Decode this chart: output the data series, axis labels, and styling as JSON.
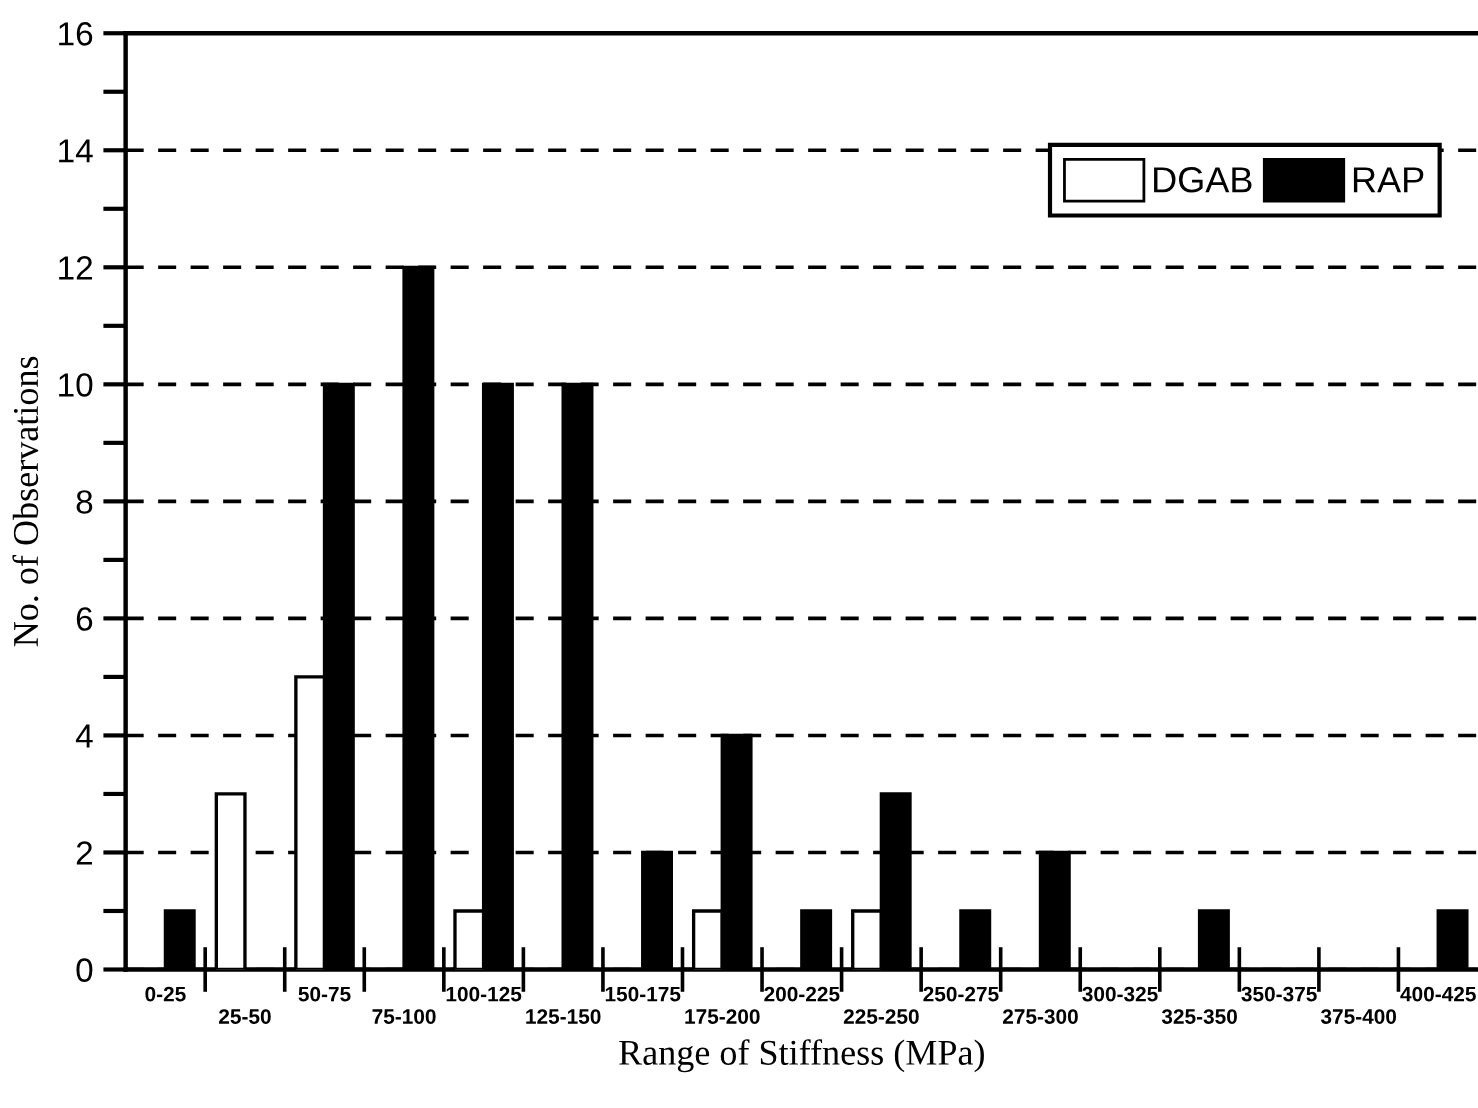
{
  "chart_data": {
    "type": "bar",
    "xlabel": "Range of Stiffness (MPa)",
    "ylabel": "No. of Observations",
    "categories": [
      "0-25",
      "25-50",
      "50-75",
      "75-100",
      "100-125",
      "125-150",
      "150-175",
      "175-200",
      "200-225",
      "225-250",
      "250-275",
      "275-300",
      "300-325",
      "325-350",
      "350-375",
      "375-400",
      "400-425"
    ],
    "series": [
      {
        "name": "DGAB",
        "color": "#ffffff",
        "values": [
          0,
          3,
          5,
          0,
          1,
          0,
          0,
          1,
          0,
          1,
          0,
          0,
          0,
          0,
          0,
          0,
          0
        ]
      },
      {
        "name": "RAP",
        "color": "#000000",
        "values": [
          1,
          0,
          10,
          12,
          10,
          10,
          2,
          4,
          1,
          3,
          1,
          2,
          0,
          1,
          0,
          0,
          1
        ]
      }
    ],
    "ylim": [
      0,
      16
    ],
    "yticks": [
      0,
      {
        "value": 1,
        "label": null
      },
      2,
      {
        "value": 3,
        "label": null
      },
      4,
      {
        "value": 5,
        "label": null
      },
      6,
      {
        "value": 7,
        "label": null
      },
      8,
      {
        "value": 9,
        "label": null
      },
      10,
      {
        "value": 11,
        "label": null
      },
      12,
      {
        "value": 13,
        "label": null
      },
      14,
      {
        "value": 15,
        "label": null
      },
      16
    ],
    "grid": "y",
    "legend": "top right"
  }
}
